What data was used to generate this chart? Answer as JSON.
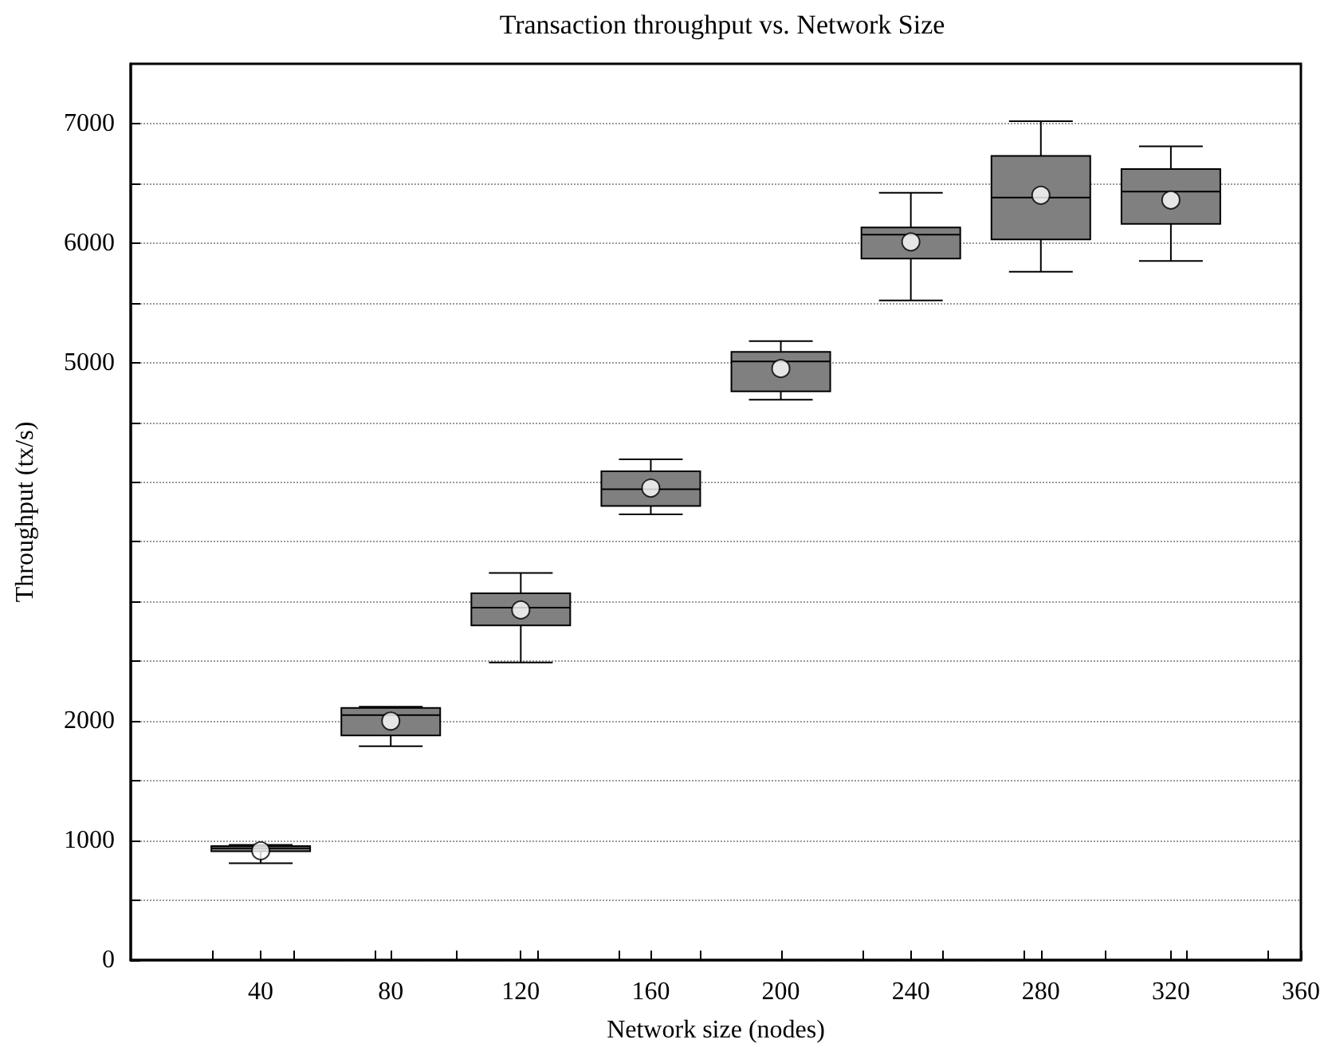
{
  "chart_data": {
    "type": "box",
    "title": "Transaction throughput vs. Network Size",
    "xlabel": "Network size (nodes)",
    "ylabel": "Throughput (tx/s)",
    "x": [
      40,
      80,
      120,
      160,
      200,
      240,
      280,
      320
    ],
    "series": [
      {
        "color": "#808080",
        "boxes": [
          {
            "low": 810,
            "q1": 910,
            "median": 935,
            "q3": 955,
            "high": 965,
            "mean": 915
          },
          {
            "low": 1790,
            "q1": 1880,
            "median": 2050,
            "q3": 2110,
            "high": 2120,
            "mean": 2000
          },
          {
            "low": 2490,
            "q1": 2800,
            "median": 2950,
            "q3": 3070,
            "high": 3240,
            "mean": 2930
          },
          {
            "low": 3730,
            "q1": 3800,
            "median": 3940,
            "q3": 4090,
            "high": 4190,
            "mean": 3950
          },
          {
            "low": 4690,
            "q1": 4760,
            "median": 5010,
            "q3": 5090,
            "high": 5180,
            "mean": 4950
          },
          {
            "low": 5520,
            "q1": 5870,
            "median": 6070,
            "q3": 6130,
            "high": 6420,
            "mean": 6010
          },
          {
            "low": 5760,
            "q1": 6030,
            "median": 6380,
            "q3": 6730,
            "high": 7020,
            "mean": 6400
          },
          {
            "low": 5850,
            "q1": 6160,
            "median": 6430,
            "q3": 6620,
            "high": 6810,
            "mean": 6360
          }
        ]
      }
    ],
    "xlim": [
      0,
      360
    ],
    "xticks": [
      {
        "value": 25,
        "label": null
      },
      40,
      {
        "value": 50,
        "label": null
      },
      {
        "value": 75,
        "label": null
      },
      80,
      {
        "value": 100,
        "label": null
      },
      120,
      {
        "value": 125,
        "label": null
      },
      {
        "value": 150,
        "label": null
      },
      160,
      {
        "value": 175,
        "label": null
      },
      200,
      {
        "value": 225,
        "label": null
      },
      240,
      {
        "value": 250,
        "label": null
      },
      {
        "value": 275,
        "label": null
      },
      280,
      {
        "value": 300,
        "label": null
      },
      320,
      {
        "value": 325,
        "label": null
      },
      {
        "value": 350,
        "label": null
      },
      360
    ],
    "ylim": [
      0,
      7500
    ],
    "yticks": [
      0,
      {
        "value": 500,
        "label": null
      },
      1000,
      {
        "value": 1500,
        "label": null
      },
      2000,
      {
        "value": 2500,
        "label": null
      },
      {
        "value": 3000,
        "label": null
      },
      {
        "value": 3500,
        "label": null
      },
      {
        "value": 4000,
        "label": null
      },
      {
        "value": 4500,
        "label": null
      },
      5000,
      {
        "value": 5500,
        "label": null
      },
      6000,
      {
        "value": 6500,
        "label": null
      },
      7000
    ],
    "grid": "y",
    "marker": "circle"
  }
}
